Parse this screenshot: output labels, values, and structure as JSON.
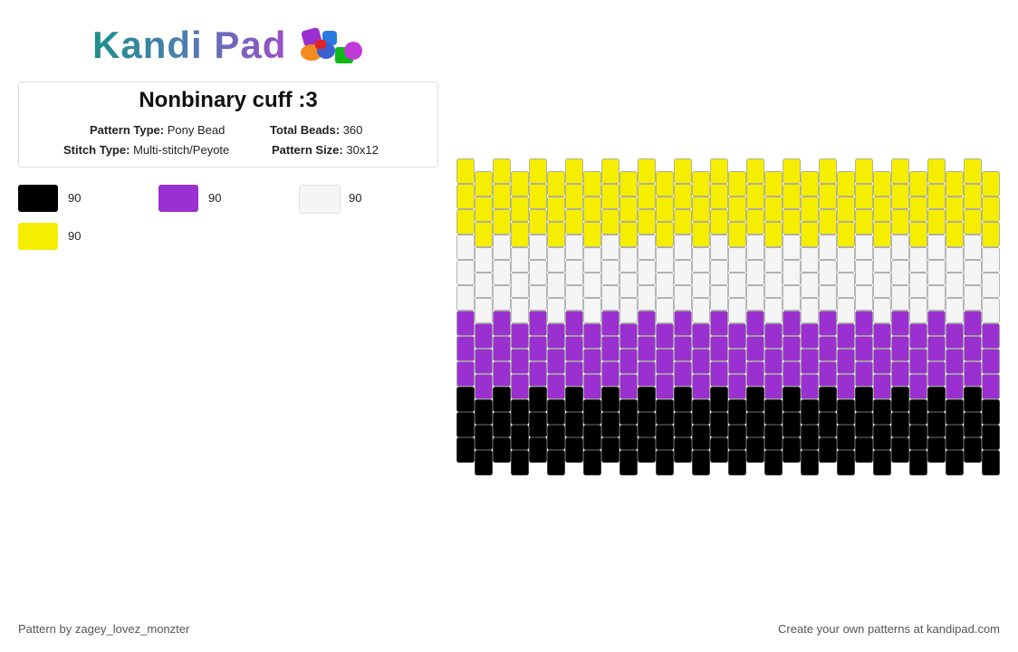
{
  "header": {
    "logo": "Kandi Pad"
  },
  "info": {
    "title": "Nonbinary cuff :3",
    "pattern_type_label": "Pattern Type:",
    "pattern_type": "Pony Bead",
    "total_beads_label": "Total Beads:",
    "total_beads": 360,
    "stitch_type_label": "Stitch Type:",
    "stitch_type": "Multi-stitch/Peyote",
    "pattern_size_label": "Pattern Size:",
    "pattern_size": "30x12"
  },
  "palette": [
    {
      "color": "#000000",
      "count": 90
    },
    {
      "color": "#9b30d0",
      "count": 90
    },
    {
      "color": "#f5f5f5",
      "count": 90
    },
    {
      "color": "#f5ee00",
      "count": 90
    }
  ],
  "footer": {
    "author": "Pattern by zagey_lovez_monzter",
    "promo": "Create your own patterns at kandipad.com"
  }
}
